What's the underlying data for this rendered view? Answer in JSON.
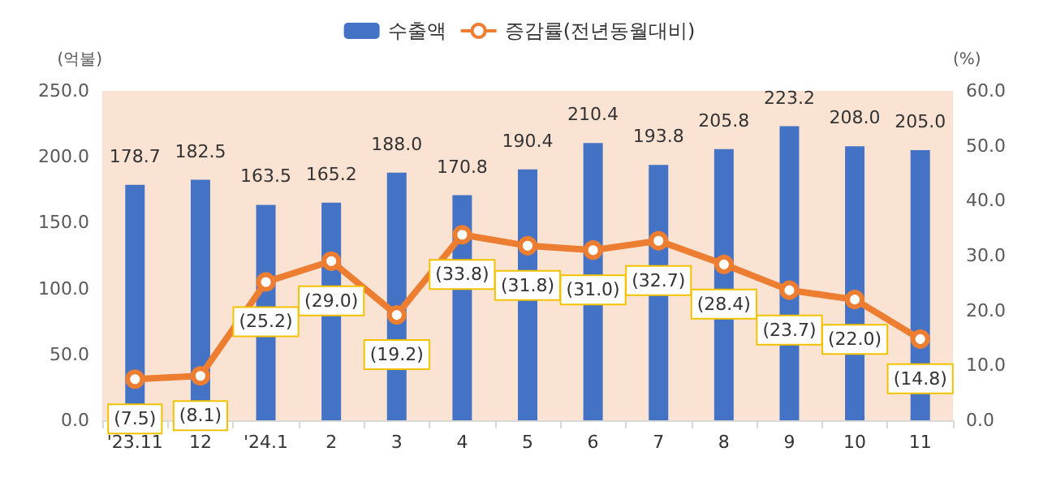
{
  "chart_data": {
    "type": "bar",
    "categories": [
      "'23.11",
      "12",
      "'24.1",
      "2",
      "3",
      "4",
      "5",
      "6",
      "7",
      "8",
      "9",
      "10",
      "11"
    ],
    "series": [
      {
        "name": "수출액",
        "color": "#4472c4",
        "values": [
          178.7,
          182.5,
          163.5,
          165.2,
          188.0,
          170.8,
          190.4,
          210.4,
          193.8,
          205.8,
          223.2,
          208.0,
          205.0
        ],
        "value_labels": [
          "178.7",
          "182.5",
          "163.5",
          "165.2",
          "188.0",
          "170.8",
          "190.4",
          "210.4",
          "193.8",
          "205.8",
          "223.2",
          "208.0",
          "205.0"
        ]
      },
      {
        "name": "증감률(전년동월대비)",
        "type": "line",
        "axis": "y2",
        "color": "#ed7d31",
        "values": [
          7.5,
          8.1,
          25.2,
          29.0,
          19.2,
          33.8,
          31.8,
          31.0,
          32.7,
          28.4,
          23.7,
          22.0,
          14.8
        ],
        "value_labels": [
          "(7.5)",
          "(8.1)",
          "(25.2)",
          "(29.0)",
          "(19.2)",
          "(33.8)",
          "(31.8)",
          "(31.0)",
          "(32.7)",
          "(28.4)",
          "(23.7)",
          "(22.0)",
          "(14.8)"
        ]
      }
    ],
    "ylabel": "(억불)",
    "y2label": "(%)",
    "ylim": [
      0,
      250
    ],
    "yticks": [
      {
        "value": 0,
        "label": "0.0"
      },
      {
        "value": 50,
        "label": "50.0"
      },
      {
        "value": 100,
        "label": "100.0"
      },
      {
        "value": 150,
        "label": "150.0"
      },
      {
        "value": 200,
        "label": "200.0"
      },
      {
        "value": 250,
        "label": "250.0"
      }
    ],
    "y2lim": [
      0,
      60
    ],
    "y2ticks": [
      {
        "value": 0,
        "label": "0.0"
      },
      {
        "value": 10,
        "label": "10.0"
      },
      {
        "value": 20,
        "label": "20.0"
      },
      {
        "value": 30,
        "label": "30.0"
      },
      {
        "value": 40,
        "label": "40.0"
      },
      {
        "value": 50,
        "label": "50.0"
      },
      {
        "value": 60,
        "label": "60.0"
      }
    ],
    "legend": "top",
    "grid": false,
    "marker": "circle",
    "line_style": "solid"
  }
}
